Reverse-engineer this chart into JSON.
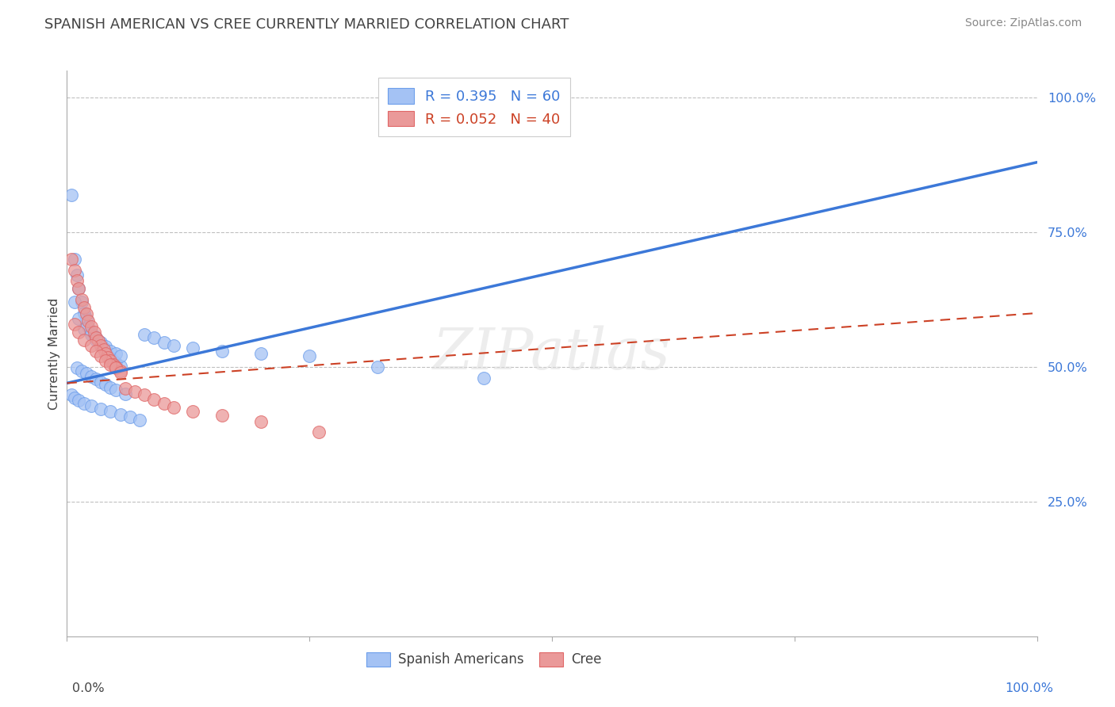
{
  "title": "SPANISH AMERICAN VS CREE CURRENTLY MARRIED CORRELATION CHART",
  "source": "Source: ZipAtlas.com",
  "ylabel": "Currently Married",
  "xlim": [
    0.0,
    1.0
  ],
  "ylim": [
    0.0,
    1.05
  ],
  "ytick_labels": [
    "25.0%",
    "50.0%",
    "75.0%",
    "100.0%"
  ],
  "ytick_values": [
    0.25,
    0.5,
    0.75,
    1.0
  ],
  "xtick_left_label": "0.0%",
  "xtick_right_label": "100.0%",
  "series1_label": "Spanish Americans",
  "series1_R": "0.395",
  "series1_N": "60",
  "series1_color": "#a4c2f4",
  "series1_edge_color": "#6d9eeb",
  "series1_line_color": "#3c78d8",
  "series2_label": "Cree",
  "series2_R": "0.052",
  "series2_N": "40",
  "series2_color": "#ea9999",
  "series2_edge_color": "#e06666",
  "series2_line_color": "#cc4125",
  "watermark": "ZIPatlas",
  "background_color": "#ffffff",
  "grid_color": "#c0c0c0",
  "title_color": "#434343",
  "ytick_color": "#3c78d8",
  "xtick_color": "#434343",
  "blue_line_x0": 0.0,
  "blue_line_y0": 0.47,
  "blue_line_x1": 1.0,
  "blue_line_y1": 0.88,
  "pink_line_x0": 0.0,
  "pink_line_y0": 0.47,
  "pink_line_x1": 1.0,
  "pink_line_y1": 0.6,
  "blue_scatter_x": [
    0.005,
    0.008,
    0.01,
    0.012,
    0.015,
    0.018,
    0.02,
    0.022,
    0.025,
    0.028,
    0.03,
    0.032,
    0.035,
    0.038,
    0.04,
    0.042,
    0.045,
    0.048,
    0.05,
    0.055,
    0.008,
    0.012,
    0.018,
    0.025,
    0.03,
    0.035,
    0.04,
    0.045,
    0.05,
    0.055,
    0.01,
    0.015,
    0.02,
    0.025,
    0.03,
    0.035,
    0.04,
    0.045,
    0.05,
    0.06,
    0.005,
    0.008,
    0.012,
    0.018,
    0.025,
    0.035,
    0.045,
    0.055,
    0.065,
    0.075,
    0.08,
    0.09,
    0.1,
    0.11,
    0.13,
    0.16,
    0.2,
    0.25,
    0.32,
    0.43
  ],
  "blue_scatter_y": [
    0.82,
    0.7,
    0.67,
    0.645,
    0.62,
    0.6,
    0.59,
    0.575,
    0.565,
    0.558,
    0.555,
    0.548,
    0.54,
    0.535,
    0.528,
    0.522,
    0.518,
    0.512,
    0.508,
    0.502,
    0.62,
    0.59,
    0.57,
    0.56,
    0.55,
    0.545,
    0.538,
    0.53,
    0.525,
    0.52,
    0.498,
    0.492,
    0.488,
    0.482,
    0.478,
    0.472,
    0.468,
    0.462,
    0.458,
    0.45,
    0.448,
    0.442,
    0.438,
    0.432,
    0.428,
    0.422,
    0.418,
    0.412,
    0.408,
    0.402,
    0.56,
    0.555,
    0.545,
    0.54,
    0.535,
    0.53,
    0.525,
    0.52,
    0.5,
    0.48
  ],
  "pink_scatter_x": [
    0.005,
    0.008,
    0.01,
    0.012,
    0.015,
    0.018,
    0.02,
    0.022,
    0.025,
    0.028,
    0.03,
    0.032,
    0.035,
    0.038,
    0.04,
    0.042,
    0.045,
    0.048,
    0.05,
    0.055,
    0.008,
    0.012,
    0.018,
    0.025,
    0.03,
    0.035,
    0.04,
    0.045,
    0.05,
    0.055,
    0.06,
    0.07,
    0.08,
    0.09,
    0.1,
    0.11,
    0.13,
    0.16,
    0.2,
    0.26
  ],
  "pink_scatter_y": [
    0.7,
    0.68,
    0.66,
    0.645,
    0.625,
    0.61,
    0.598,
    0.585,
    0.575,
    0.565,
    0.555,
    0.548,
    0.54,
    0.532,
    0.525,
    0.518,
    0.512,
    0.505,
    0.5,
    0.492,
    0.58,
    0.565,
    0.55,
    0.54,
    0.53,
    0.52,
    0.512,
    0.505,
    0.498,
    0.49,
    0.46,
    0.455,
    0.448,
    0.44,
    0.432,
    0.425,
    0.418,
    0.41,
    0.398,
    0.38
  ]
}
